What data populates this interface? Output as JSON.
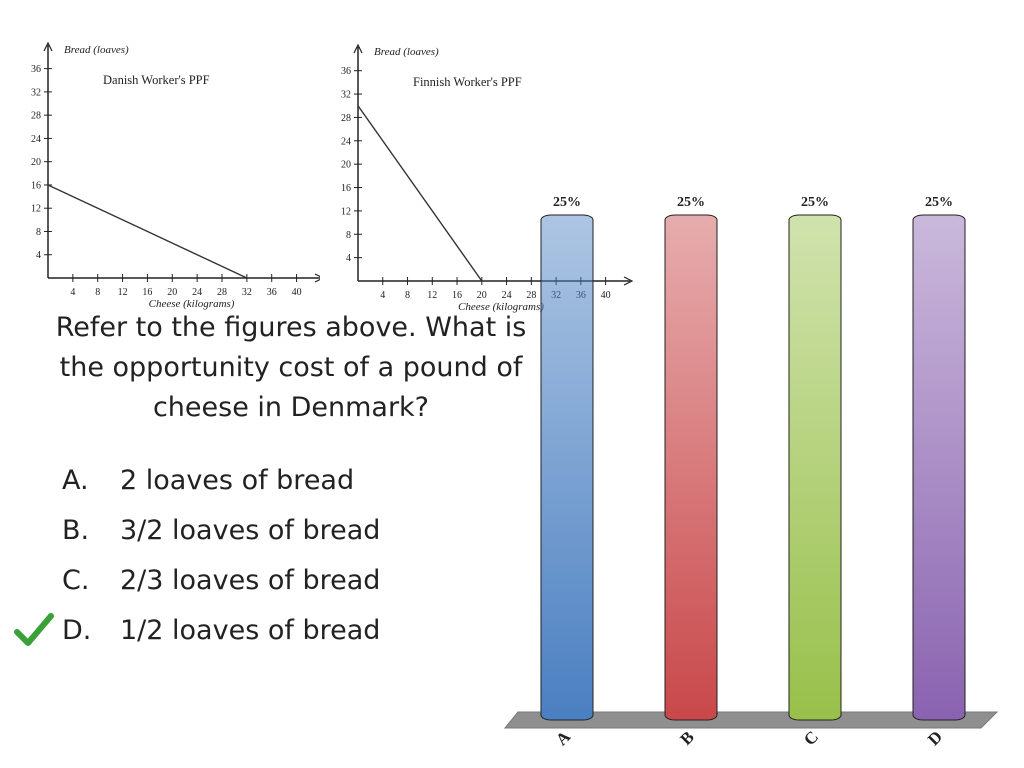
{
  "ppf_charts": [
    {
      "type": "line",
      "title": "Danish Worker's PPF",
      "ylabel": "Bread (loaves)",
      "xlabel": "Cheese (kilograms)",
      "x_ticks": [
        4,
        8,
        12,
        16,
        20,
        24,
        28,
        32,
        36,
        40
      ],
      "y_ticks": [
        4,
        8,
        12,
        16,
        20,
        24,
        28,
        32,
        36
      ],
      "xlim": [
        0,
        42
      ],
      "ylim": [
        0,
        38
      ],
      "points": [
        [
          0,
          16
        ],
        [
          32,
          0
        ]
      ]
    },
    {
      "type": "line",
      "title": "Finnish Worker's PPF",
      "ylabel": "Bread (loaves)",
      "xlabel": "Cheese (kilograms)",
      "x_ticks": [
        4,
        8,
        12,
        16,
        20,
        24,
        28,
        32,
        36,
        40
      ],
      "y_ticks": [
        4,
        8,
        12,
        16,
        20,
        24,
        28,
        32,
        36
      ],
      "xlim": [
        0,
        42
      ],
      "ylim": [
        0,
        38
      ],
      "points": [
        [
          0,
          30
        ],
        [
          20,
          0
        ]
      ]
    }
  ],
  "question": "Refer to the figures above. What is the opportunity cost of a pound of cheese in Denmark?",
  "choices": [
    {
      "letter": "A.",
      "text": "2 loaves of bread"
    },
    {
      "letter": "B.",
      "text": "3/2 loaves of bread"
    },
    {
      "letter": "C.",
      "text": "2/3 loaves of bread"
    },
    {
      "letter": "D.",
      "text": "1/2 loaves of bread"
    }
  ],
  "correct_choice": "D",
  "chart_data": {
    "type": "bar",
    "categories": [
      "A",
      "B",
      "C",
      "D"
    ],
    "values": [
      25,
      25,
      25,
      25
    ],
    "value_labels": [
      "25%",
      "25%",
      "25%",
      "25%"
    ],
    "ylim": [
      0,
      100
    ],
    "colors": [
      "#4a7fc1",
      "#c9484a",
      "#98c04a",
      "#8a63b0"
    ]
  }
}
